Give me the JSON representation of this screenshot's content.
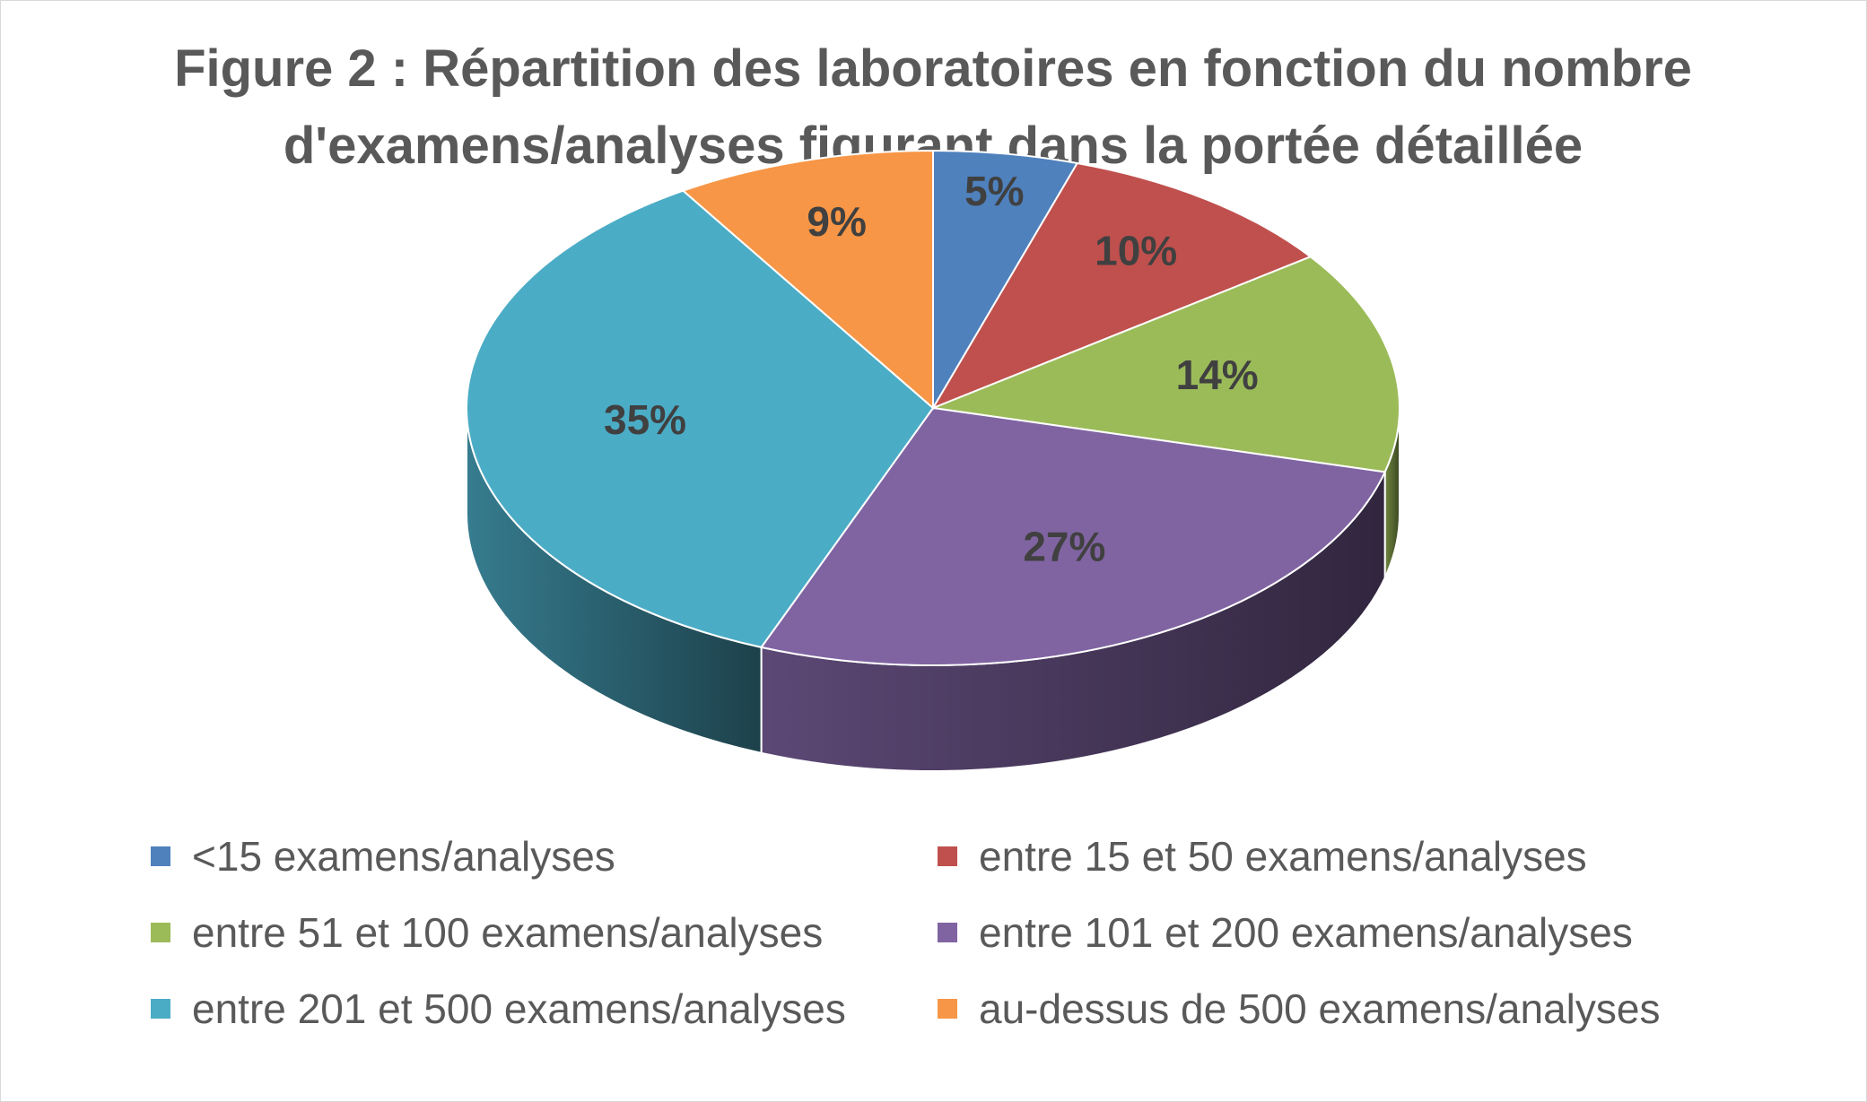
{
  "chart_data": {
    "type": "pie",
    "title_lines": [
      "Figure 2 : Répartition des laboratoires en fonction du nombre",
      "d'examens/analyses figurant dans la portée détaillée"
    ],
    "categories": [
      "<15 examens/analyses",
      "entre 15 et 50 examens/analyses",
      "entre 51 et 100 examens/analyses",
      "entre 101 et 200 examens/analyses",
      "entre 201 et 500 examens/analyses",
      "au-dessus de 500 examens/analyses"
    ],
    "values": [
      5,
      10,
      14,
      27,
      35,
      9
    ],
    "labels": [
      "5%",
      "10%",
      "14%",
      "27%",
      "35%",
      "9%"
    ],
    "colors": [
      "#4f81bd",
      "#c0504d",
      "#9bbb59",
      "#8064a2",
      "#4bacc6",
      "#f79646"
    ],
    "legend_position": "bottom",
    "style": "3d"
  }
}
